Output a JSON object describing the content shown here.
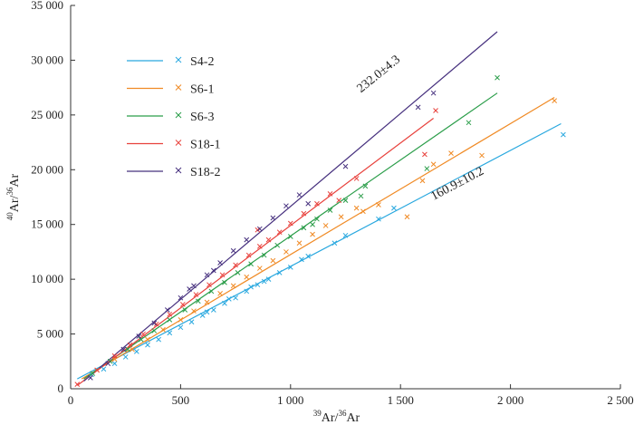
{
  "chart_data": {
    "type": "scatter",
    "xlabel": {
      "sup": "39",
      "main": "Ar/",
      "sup2": "36",
      "main2": "Ar"
    },
    "ylabel": {
      "sup": "40",
      "main": "Ar/",
      "sup2": "36",
      "main2": "Ar"
    },
    "xlim": [
      0,
      2500
    ],
    "ylim": [
      0,
      35000
    ],
    "x_ticks": [
      0,
      500,
      1000,
      1500,
      2000,
      2500
    ],
    "x_tick_labels": [
      "0",
      "500",
      "1 000",
      "1 500",
      "2 000",
      "2 500"
    ],
    "y_ticks": [
      0,
      5000,
      10000,
      15000,
      20000,
      25000,
      30000,
      35000
    ],
    "y_tick_labels": [
      "0",
      "5 000",
      "10 000",
      "15 000",
      "20 000",
      "25 000",
      "30 000",
      "35 000"
    ],
    "grid": false,
    "legend_position": "top-left",
    "annotations": [
      {
        "text": "232.0±4.3",
        "x": 1320,
        "y": 27000,
        "rotation_data_slope": 16.3
      },
      {
        "text": "160.9±10.2",
        "x": 1650,
        "y": 17200,
        "rotation_data_slope": 10.6
      }
    ],
    "series": [
      {
        "name": "S4-2",
        "color": "#29a8df",
        "line": [
          [
            30,
            900
          ],
          [
            2230,
            24200
          ]
        ],
        "points": [
          [
            95,
            1300
          ],
          [
            150,
            1800
          ],
          [
            200,
            2300
          ],
          [
            250,
            2900
          ],
          [
            300,
            3400
          ],
          [
            350,
            4000
          ],
          [
            400,
            4500
          ],
          [
            450,
            5100
          ],
          [
            500,
            5600
          ],
          [
            550,
            6100
          ],
          [
            600,
            6700
          ],
          [
            650,
            7200
          ],
          [
            700,
            7800
          ],
          [
            750,
            8300
          ],
          [
            800,
            8900
          ],
          [
            850,
            9500
          ],
          [
            900,
            10000
          ],
          [
            950,
            10600
          ],
          [
            1000,
            11100
          ],
          [
            1050,
            11800
          ],
          [
            1080,
            12100
          ],
          [
            1200,
            13300
          ],
          [
            1250,
            14000
          ],
          [
            1400,
            15500
          ],
          [
            1470,
            16500
          ],
          [
            2240,
            23200
          ],
          [
            620,
            7000
          ],
          [
            720,
            8200
          ],
          [
            820,
            9300
          ],
          [
            880,
            9800
          ]
        ]
      },
      {
        "name": "S6-1",
        "color": "#f08a24",
        "line": [
          [
            50,
            900
          ],
          [
            2200,
            26600
          ]
        ],
        "points": [
          [
            120,
            1700
          ],
          [
            200,
            2700
          ],
          [
            280,
            3600
          ],
          [
            350,
            4500
          ],
          [
            420,
            5400
          ],
          [
            500,
            6300
          ],
          [
            560,
            7100
          ],
          [
            620,
            7900
          ],
          [
            680,
            8700
          ],
          [
            740,
            9400
          ],
          [
            800,
            10200
          ],
          [
            860,
            11000
          ],
          [
            920,
            11700
          ],
          [
            980,
            12500
          ],
          [
            1040,
            13300
          ],
          [
            1100,
            14100
          ],
          [
            1160,
            14900
          ],
          [
            1230,
            15700
          ],
          [
            1330,
            16200
          ],
          [
            1400,
            16800
          ],
          [
            1530,
            15700
          ],
          [
            1600,
            19000
          ],
          [
            1730,
            21500
          ],
          [
            1870,
            21300
          ],
          [
            2200,
            26300
          ],
          [
            1650,
            20500
          ],
          [
            1300,
            16500
          ]
        ]
      },
      {
        "name": "S6-3",
        "color": "#2a9d49",
        "line": [
          [
            60,
            900
          ],
          [
            1940,
            27000
          ]
        ],
        "points": [
          [
            100,
            1400
          ],
          [
            180,
            2500
          ],
          [
            260,
            3600
          ],
          [
            320,
            4500
          ],
          [
            380,
            5300
          ],
          [
            450,
            6300
          ],
          [
            520,
            7200
          ],
          [
            580,
            8000
          ],
          [
            640,
            8900
          ],
          [
            700,
            9700
          ],
          [
            760,
            10600
          ],
          [
            820,
            11400
          ],
          [
            880,
            12200
          ],
          [
            940,
            13100
          ],
          [
            1000,
            13900
          ],
          [
            1060,
            14700
          ],
          [
            1120,
            15500
          ],
          [
            1180,
            16300
          ],
          [
            1250,
            17200
          ],
          [
            1320,
            17600
          ],
          [
            1620,
            20100
          ],
          [
            1810,
            24300
          ],
          [
            1940,
            28400
          ],
          [
            1340,
            18500
          ],
          [
            1100,
            15000
          ]
        ]
      },
      {
        "name": "S18-1",
        "color": "#e8413c",
        "line": [
          [
            30,
            300
          ],
          [
            1650,
            24700
          ]
        ],
        "points": [
          [
            30,
            400
          ],
          [
            120,
            1700
          ],
          [
            200,
            3000
          ],
          [
            270,
            4000
          ],
          [
            330,
            5000
          ],
          [
            390,
            5900
          ],
          [
            450,
            6800
          ],
          [
            510,
            7700
          ],
          [
            570,
            8600
          ],
          [
            630,
            9500
          ],
          [
            690,
            10400
          ],
          [
            750,
            11300
          ],
          [
            810,
            12200
          ],
          [
            860,
            13000
          ],
          [
            900,
            13600
          ],
          [
            950,
            14300
          ],
          [
            1000,
            15100
          ],
          [
            1060,
            16000
          ],
          [
            1120,
            16900
          ],
          [
            1180,
            17800
          ],
          [
            1220,
            17200
          ],
          [
            1300,
            19200
          ],
          [
            1610,
            21400
          ],
          [
            1660,
            25400
          ],
          [
            850,
            14500
          ]
        ]
      },
      {
        "name": "S18-2",
        "color": "#46307e",
        "line": [
          [
            60,
            700
          ],
          [
            1940,
            32600
          ]
        ],
        "points": [
          [
            90,
            1000
          ],
          [
            170,
            2300
          ],
          [
            240,
            3600
          ],
          [
            310,
            4800
          ],
          [
            380,
            6000
          ],
          [
            440,
            7200
          ],
          [
            500,
            8300
          ],
          [
            560,
            9400
          ],
          [
            620,
            10400
          ],
          [
            680,
            11500
          ],
          [
            740,
            12600
          ],
          [
            800,
            13600
          ],
          [
            860,
            14600
          ],
          [
            920,
            15600
          ],
          [
            980,
            16700
          ],
          [
            1040,
            17700
          ],
          [
            1080,
            16900
          ],
          [
            1250,
            20300
          ],
          [
            1580,
            25700
          ],
          [
            1650,
            27000
          ],
          [
            650,
            10800
          ],
          [
            540,
            9100
          ]
        ]
      }
    ]
  }
}
